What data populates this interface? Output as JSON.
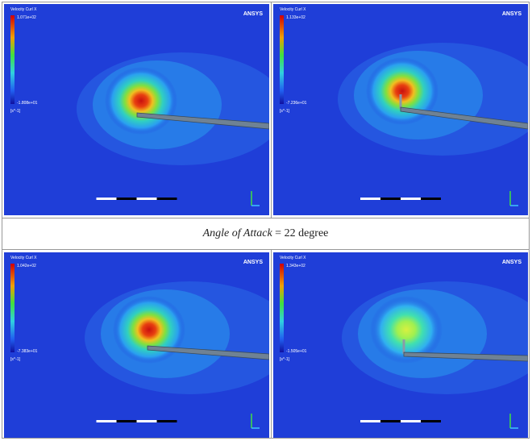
{
  "panels": [
    {
      "legend_title": "Velocity Curl X",
      "legend_top": "1.071e+02",
      "legend_bottom": "-1.808e+01",
      "unit": "[s^-1]",
      "logo": "ANSYS"
    },
    {
      "legend_title": "Velocity Curl X",
      "legend_top": "1.133e+02",
      "legend_bottom": "-7.236e+01",
      "unit": "[s^-1]",
      "logo": "ANSYS"
    },
    {
      "legend_title": "Velocity Curl X",
      "legend_top": "1.042e+02",
      "legend_bottom": "-7.383e+01",
      "unit": "[s^-1]",
      "logo": "ANSYS"
    },
    {
      "legend_title": "Velocity Curl X",
      "legend_top": "1.343e+02",
      "legend_bottom": "-1.505e+01",
      "unit": "[s^-1]",
      "logo": "ANSYS"
    }
  ],
  "caption": {
    "label": "Angle of Attack",
    "text": "= 22 degree"
  }
}
